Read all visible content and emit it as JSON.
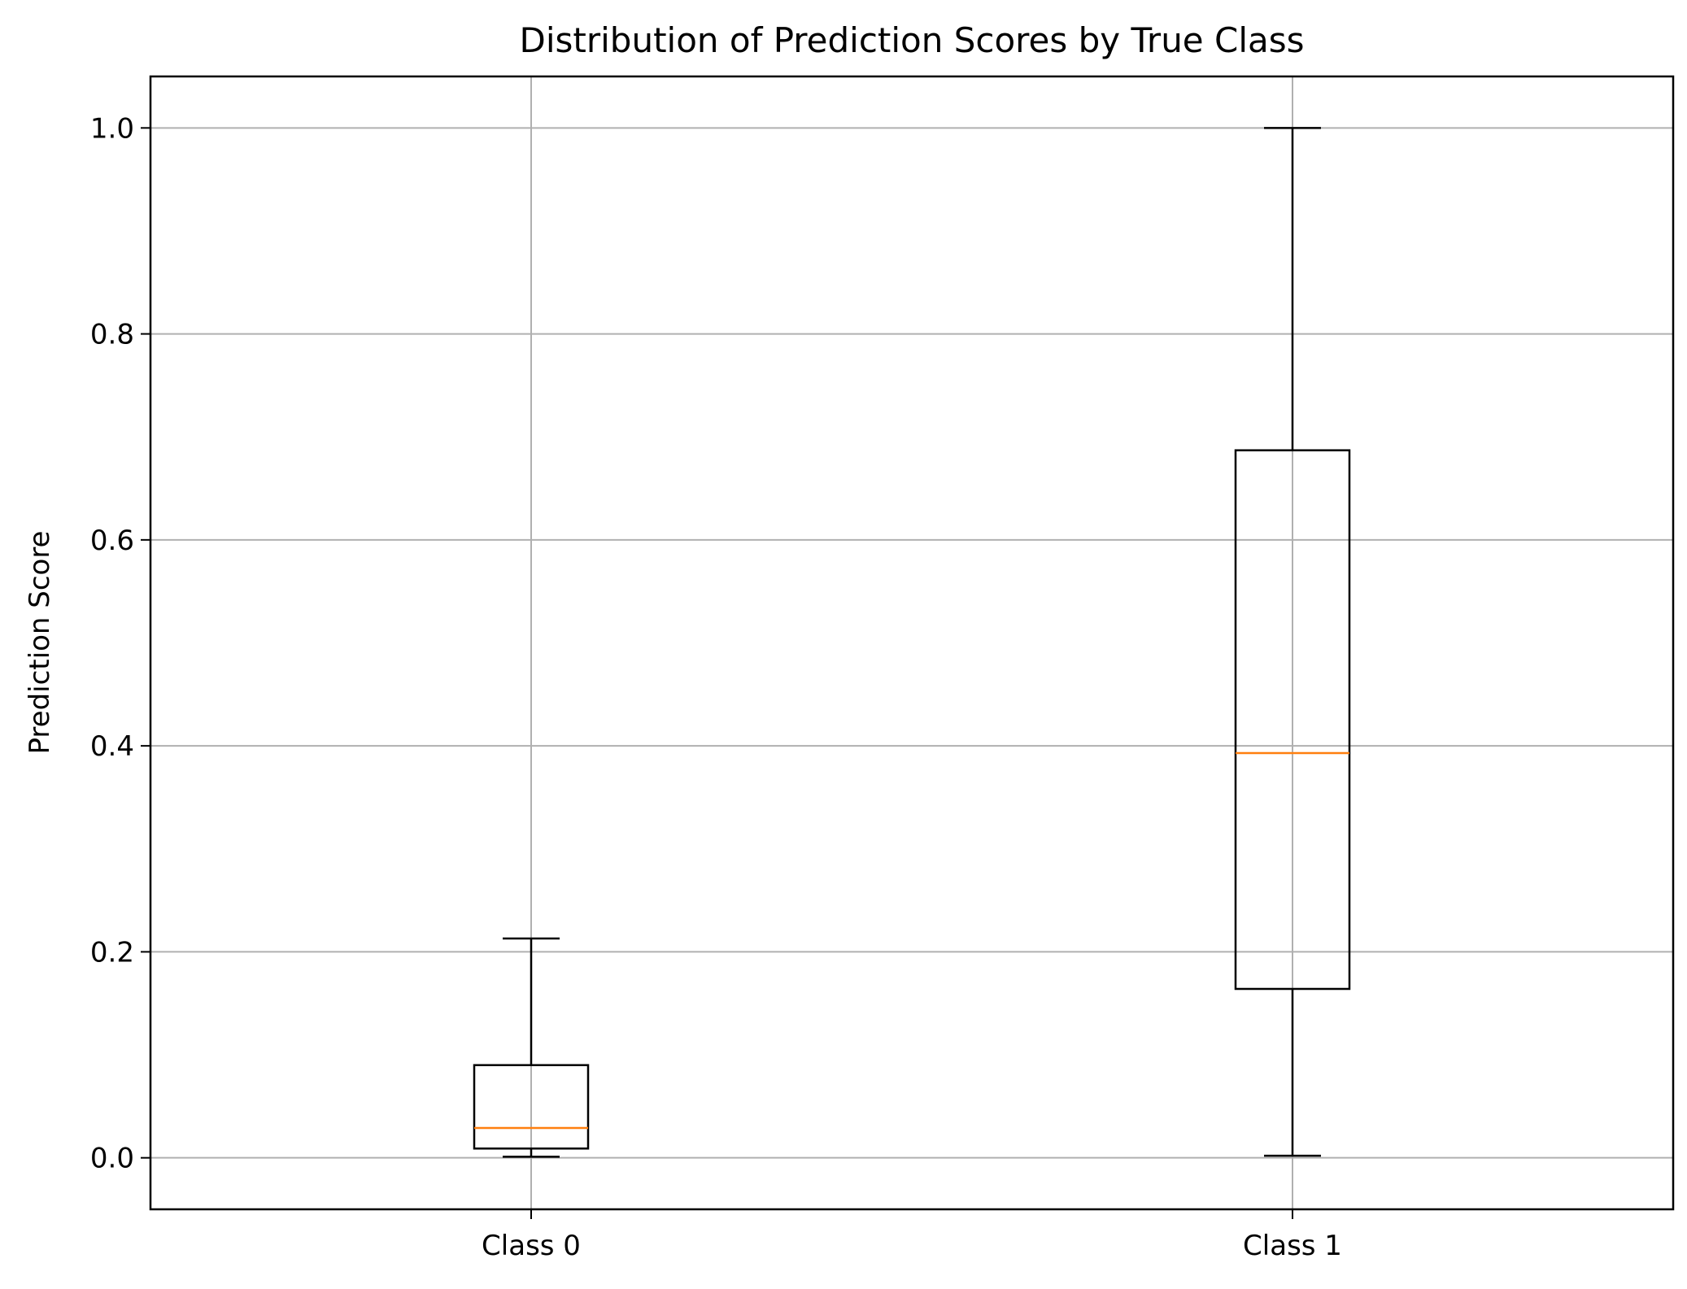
{
  "chart_data": {
    "type": "box",
    "title": "Distribution of Prediction Scores by True Class",
    "xlabel": "",
    "ylabel": "Prediction Score",
    "categories": [
      "Class 0",
      "Class 1"
    ],
    "ylim": [
      -0.05,
      1.05
    ],
    "yticks": [
      0.0,
      0.2,
      0.4,
      0.6,
      0.8,
      1.0
    ],
    "ytick_labels": [
      "0.0",
      "0.2",
      "0.4",
      "0.6",
      "0.8",
      "1.0"
    ],
    "grid": true,
    "boxes": [
      {
        "category": "Class 0",
        "whisker_low": 0.001,
        "q1": 0.009,
        "median": 0.029,
        "q3": 0.09,
        "whisker_high": 0.213
      },
      {
        "category": "Class 1",
        "whisker_low": 0.002,
        "q1": 0.164,
        "median": 0.393,
        "q3": 0.687,
        "whisker_high": 1.0
      }
    ],
    "colors": {
      "box": "#000000",
      "median": "#ff7f0e",
      "grid": "#b0b0b0"
    }
  }
}
